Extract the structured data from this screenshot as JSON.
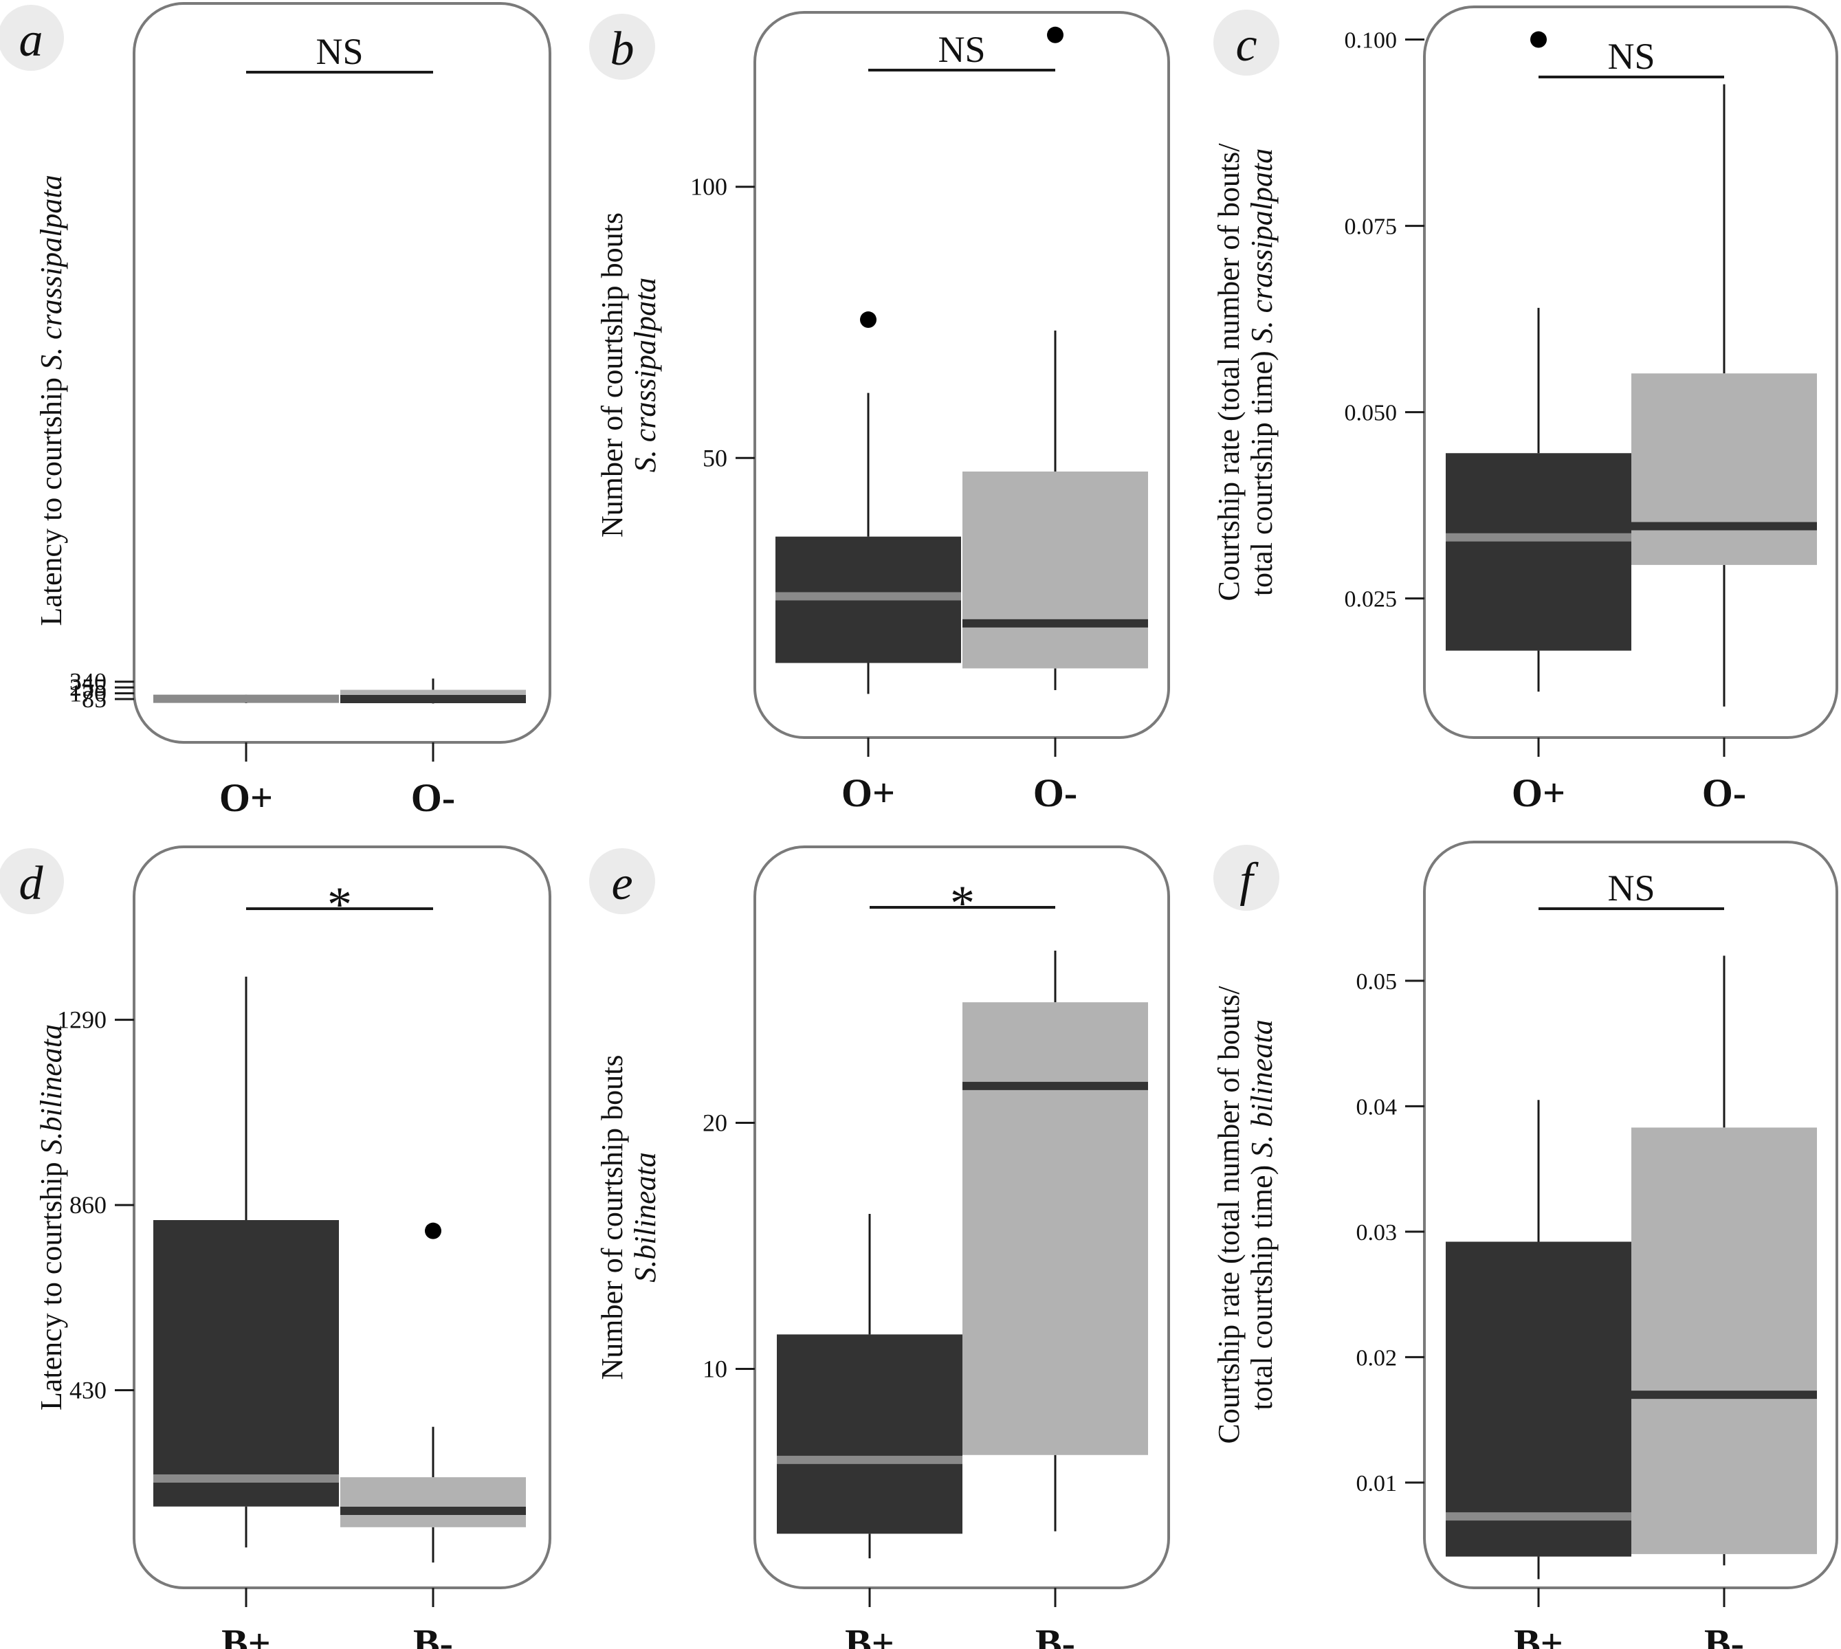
{
  "figure": {
    "colors": {
      "frame": "#7a7a7a",
      "dark_box": "#333333",
      "light_box": "#b2b2b2",
      "median_on_dark": "#8a8a8a",
      "median_on_light": "#333333",
      "line": "#1a1a1a",
      "letter_bg": "#ebebeb"
    }
  },
  "chart_data": [
    {
      "panel": "a",
      "type": "box",
      "ylabel": "Latency to courtship",
      "ylabel_species": "S. crassipalpata",
      "categories": [
        "O+",
        "O-"
      ],
      "yticks": [
        85,
        170,
        255,
        340
      ],
      "ytick_labels": [
        "85",
        "170",
        "255",
        "340"
      ],
      "ylim": [
        5,
        408
      ],
      "boxes": [
        {
          "name": "O+",
          "style": "dark",
          "whisker_low": 25,
          "q1": 70,
          "median": 90,
          "q3": 122,
          "whisker_high": 148,
          "outliers": []
        },
        {
          "name": "O-",
          "style": "light",
          "whisker_low": 21,
          "q1": 31,
          "median": 85,
          "q3": 221,
          "whisker_high": 386,
          "outliers": []
        }
      ],
      "significance": "NS"
    },
    {
      "panel": "b",
      "type": "box",
      "ylabel": "Number of courtship bouts",
      "ylabel_species": "S. crassipalpata",
      "categories": [
        "O+",
        "O-"
      ],
      "yticks": [
        50,
        100
      ],
      "ytick_labels": [
        "50",
        "100"
      ],
      "ylim": [
        2,
        130
      ],
      "boxes": [
        {
          "name": "O+",
          "style": "dark",
          "whisker_low": 6.5,
          "q1": 12.2,
          "median": 24.5,
          "q3": 35.5,
          "whisker_high": 62,
          "outliers": [
            75.5
          ]
        },
        {
          "name": "O-",
          "style": "light",
          "whisker_low": 7.2,
          "q1": 11.2,
          "median": 19.5,
          "q3": 47.5,
          "whisker_high": 73.5,
          "outliers": [
            128
          ]
        }
      ],
      "significance": "NS"
    },
    {
      "panel": "c",
      "type": "box",
      "ylabel": "Courtship rate (total number of bouts/",
      "ylabel_line2": "total courtship time)",
      "ylabel_species": "S. crassipalpata",
      "categories": [
        "O+",
        "O-"
      ],
      "yticks": [
        0.025,
        0.05,
        0.075,
        0.1
      ],
      "ytick_labels": [
        "0.025",
        "0.050",
        "0.075",
        "0.100"
      ],
      "ylim": [
        0.008,
        0.103
      ],
      "boxes": [
        {
          "name": "O+",
          "style": "dark",
          "whisker_low": 0.0125,
          "q1": 0.018,
          "median": 0.0332,
          "q3": 0.0445,
          "whisker_high": 0.064,
          "outliers": [
            0.1
          ]
        },
        {
          "name": "O-",
          "style": "light",
          "whisker_low": 0.0105,
          "q1": 0.0295,
          "median": 0.0347,
          "q3": 0.0552,
          "whisker_high": 0.094,
          "outliers": []
        }
      ],
      "significance": "NS"
    },
    {
      "panel": "d",
      "type": "box",
      "ylabel": "Latency to courtship",
      "ylabel_species": "S.bilineata",
      "categories": [
        "B+",
        "B-"
      ],
      "yticks": [
        430,
        860,
        1290
      ],
      "ytick_labels": [
        "430",
        "860",
        "1290"
      ],
      "ylim": [
        0,
        1500
      ],
      "boxes": [
        {
          "name": "B+",
          "style": "dark",
          "whisker_low": 65,
          "q1": 160,
          "median": 225,
          "q3": 825,
          "whisker_high": 1390,
          "outliers": []
        },
        {
          "name": "B-",
          "style": "light",
          "whisker_low": 30,
          "q1": 112,
          "median": 150,
          "q3": 228,
          "whisker_high": 345,
          "outliers": [
            800
          ]
        }
      ],
      "significance": "*"
    },
    {
      "panel": "e",
      "type": "box",
      "ylabel": "Number of courtship bouts",
      "ylabel_species": "S.bilineata",
      "categories": [
        "B+",
        "B-"
      ],
      "yticks": [
        10,
        20
      ],
      "ytick_labels": [
        "10",
        "20"
      ],
      "ylim": [
        1.8,
        28.2
      ],
      "boxes": [
        {
          "name": "B+",
          "style": "dark",
          "whisker_low": 2.3,
          "q1": 3.3,
          "median": 6.3,
          "q3": 11.4,
          "whisker_high": 16.3,
          "outliers": []
        },
        {
          "name": "B-",
          "style": "light",
          "whisker_low": 3.4,
          "q1": 6.5,
          "median": 21.5,
          "q3": 24.9,
          "whisker_high": 27,
          "outliers": []
        }
      ],
      "significance": "*"
    },
    {
      "panel": "f",
      "type": "box",
      "ylabel": "Courtship rate (total number of bouts/",
      "ylabel_line2": "total courtship time)",
      "ylabel_species": "S. bilineata",
      "categories": [
        "B+",
        "B-"
      ],
      "yticks": [
        0.01,
        0.02,
        0.03,
        0.04,
        0.05
      ],
      "ytick_labels": [
        "0.01",
        "0.02",
        "0.03",
        "0.04",
        "0.05"
      ],
      "ylim": [
        0.0015,
        0.0575
      ],
      "boxes": [
        {
          "name": "B+",
          "style": "dark",
          "whisker_low": 0.0023,
          "q1": 0.0041,
          "median": 0.0073,
          "q3": 0.0292,
          "whisker_high": 0.0405,
          "outliers": []
        },
        {
          "name": "B-",
          "style": "light",
          "whisker_low": 0.0034,
          "q1": 0.0043,
          "median": 0.017,
          "q3": 0.0383,
          "whisker_high": 0.052,
          "outliers": []
        }
      ],
      "significance": "NS"
    }
  ]
}
